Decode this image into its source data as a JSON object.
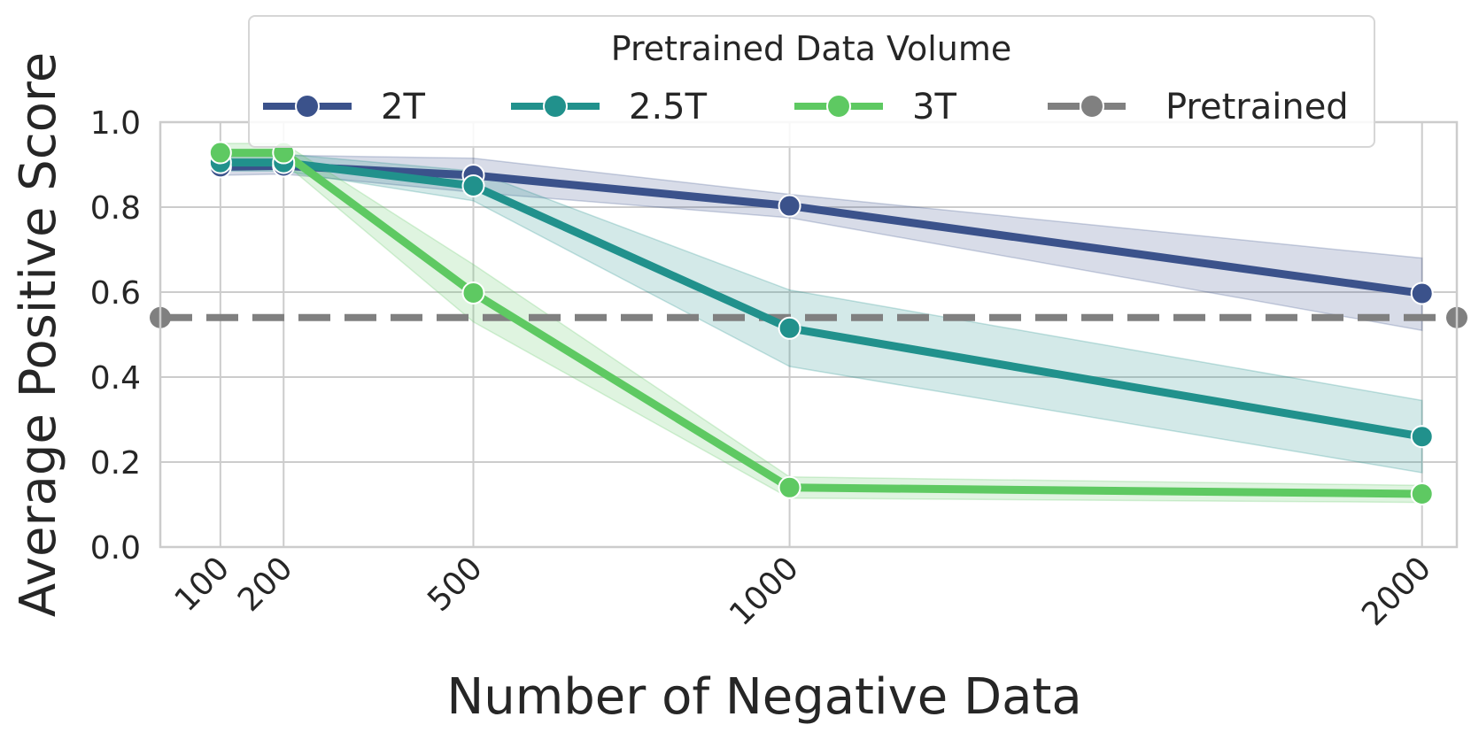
{
  "chart_data": {
    "type": "line",
    "title": "",
    "xlabel": "Number of Negative Data",
    "ylabel": "Average Positive Score",
    "x": [
      100,
      200,
      500,
      1000,
      2000
    ],
    "x_tick_labels": [
      "100",
      "200",
      "500",
      "1000",
      "2000"
    ],
    "xlim": [
      5,
      2055
    ],
    "ylim": [
      0.0,
      1.0
    ],
    "y_ticks": [
      0.0,
      0.2,
      0.4,
      0.6,
      0.8,
      1.0
    ],
    "y_tick_labels": [
      "0.0",
      "0.2",
      "0.4",
      "0.6",
      "0.8",
      "1.0"
    ],
    "grid": true,
    "legend": {
      "title": "Pretrained Data Volume",
      "placement": "top-center",
      "entries": [
        "2T",
        "2.5T",
        "3T",
        "Pretrained"
      ]
    },
    "series": [
      {
        "name": "2T",
        "color": "#3b528b",
        "values": [
          0.895,
          0.897,
          0.875,
          0.803,
          0.597
        ],
        "ci_lower": [
          0.875,
          0.878,
          0.835,
          0.775,
          0.51
        ],
        "ci_upper": [
          0.92,
          0.922,
          0.915,
          0.83,
          0.68
        ]
      },
      {
        "name": "2.5T",
        "color": "#21918c",
        "values": [
          0.905,
          0.905,
          0.85,
          0.515,
          0.26
        ],
        "ci_lower": [
          0.885,
          0.885,
          0.815,
          0.425,
          0.175
        ],
        "ci_upper": [
          0.925,
          0.925,
          0.885,
          0.605,
          0.345
        ]
      },
      {
        "name": "3T",
        "color": "#5ec962",
        "values": [
          0.928,
          0.928,
          0.598,
          0.14,
          0.125
        ],
        "ci_lower": [
          0.905,
          0.905,
          0.53,
          0.115,
          0.105
        ],
        "ci_upper": [
          0.95,
          0.95,
          0.665,
          0.165,
          0.145
        ]
      }
    ],
    "reference_line": {
      "name": "Pretrained",
      "color": "#808080",
      "value": 0.54,
      "style": "dashed"
    }
  }
}
